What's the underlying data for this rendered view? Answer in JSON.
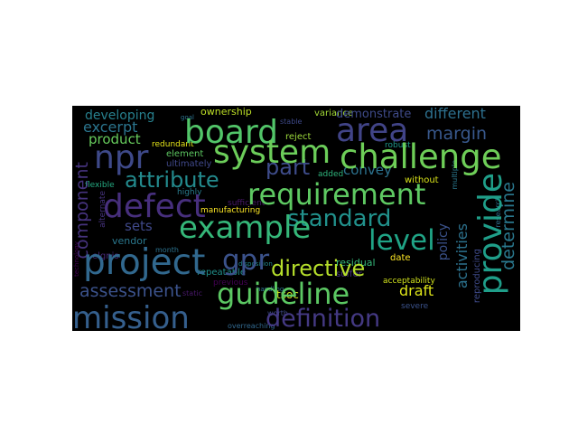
{
  "colors": {
    "background": "#000000",
    "page": "#ffffff",
    "palette": [
      "#440154",
      "#46327e",
      "#365c8d",
      "#277f8e",
      "#1fa187",
      "#4ac16d",
      "#a0da39",
      "#fde725"
    ]
  },
  "words": [
    {
      "text": "mission",
      "color": "#355f8d"
    },
    {
      "text": "definition",
      "color": "#443983"
    },
    {
      "text": "guideline",
      "color": "#5cc863"
    },
    {
      "text": "project",
      "color": "#31688e"
    },
    {
      "text": "gpr",
      "color": "#3b528b"
    },
    {
      "text": "directive",
      "color": "#b5de2b"
    },
    {
      "text": "level",
      "color": "#20a486"
    },
    {
      "text": "example",
      "color": "#35b779"
    },
    {
      "text": "standard",
      "color": "#21918c"
    },
    {
      "text": "defect",
      "color": "#472f7d"
    },
    {
      "text": "requirement",
      "color": "#5ec962"
    },
    {
      "text": "npr",
      "color": "#3e4989"
    },
    {
      "text": "system",
      "color": "#6ccd5a"
    },
    {
      "text": "challenge",
      "color": "#6ece58"
    },
    {
      "text": "board",
      "color": "#52c569"
    },
    {
      "text": "area",
      "color": "#414487"
    },
    {
      "text": "provide",
      "color": "#1f9e89"
    },
    {
      "text": "determine",
      "color": "#2a788e"
    },
    {
      "text": "component",
      "color": "#46337e"
    },
    {
      "text": "assessment",
      "color": "#3b528b"
    },
    {
      "text": "attribute",
      "color": "#238a8d"
    },
    {
      "text": "part",
      "color": "#3e4c8a"
    },
    {
      "text": "convey",
      "color": "#2c728e"
    },
    {
      "text": "margin",
      "color": "#38588c"
    },
    {
      "text": "different",
      "color": "#2d708e"
    },
    {
      "text": "demonstrate",
      "color": "#3e4a89"
    },
    {
      "text": "excerpt",
      "color": "#2b758e"
    },
    {
      "text": "product",
      "color": "#67cc5c"
    },
    {
      "text": "developing",
      "color": "#27808e"
    },
    {
      "text": "ownership",
      "color": "#bddf26"
    },
    {
      "text": "activities",
      "color": "#2c728e"
    },
    {
      "text": "policy",
      "color": "#3b528b"
    },
    {
      "text": "draft",
      "color": "#dce319"
    },
    {
      "text": "sets",
      "color": "#3f4889"
    },
    {
      "text": "vendor",
      "color": "#2a788e"
    },
    {
      "text": "tsoc",
      "color": "#c8e020"
    },
    {
      "text": "element",
      "color": "#5ec962"
    },
    {
      "text": "ultimately",
      "color": "#3f4889"
    },
    {
      "text": "redundant",
      "color": "#e5e419"
    },
    {
      "text": "without",
      "color": "#d8e219"
    },
    {
      "text": "date",
      "color": "#fde725"
    },
    {
      "text": "acceptability",
      "color": "#d0e11c"
    },
    {
      "text": "reproducing",
      "color": "#3e4a89"
    },
    {
      "text": "residual",
      "color": "#35b779"
    },
    {
      "text": "suffer",
      "color": "#46337e"
    },
    {
      "text": "reject",
      "color": "#9dd93b"
    },
    {
      "text": "repeatable",
      "color": "#21918c"
    },
    {
      "text": "previous",
      "color": "#440154"
    },
    {
      "text": "manufacturing",
      "color": "#fde725"
    },
    {
      "text": "sufficient",
      "color": "#48186a"
    },
    {
      "text": "highly",
      "color": "#287c8e"
    },
    {
      "text": "flexible",
      "color": "#25ab82"
    },
    {
      "text": "stable",
      "color": "#3e4989"
    },
    {
      "text": "variance",
      "color": "#a2da37"
    },
    {
      "text": "added",
      "color": "#2fb47c"
    },
    {
      "text": "robust",
      "color": "#1f968b"
    },
    {
      "text": "severe",
      "color": "#3b528b"
    },
    {
      "text": "month",
      "color": "#2c728e"
    },
    {
      "text": "worth",
      "color": "#3e4989"
    },
    {
      "text": "overreaching",
      "color": "#31688e"
    },
    {
      "text": "alternate",
      "color": "#46337e"
    },
    {
      "text": "static",
      "color": "#48186a"
    },
    {
      "text": "elgnis",
      "color": "#482878"
    },
    {
      "text": "technology",
      "color": "#440154"
    },
    {
      "text": "disposition",
      "color": "#23888e"
    },
    {
      "text": "handling",
      "color": "#2d708e"
    },
    {
      "text": "goal",
      "color": "#2c728e"
    },
    {
      "text": "research",
      "color": "#2d708e"
    },
    {
      "text": "multiple",
      "color": "#2a788e"
    }
  ]
}
